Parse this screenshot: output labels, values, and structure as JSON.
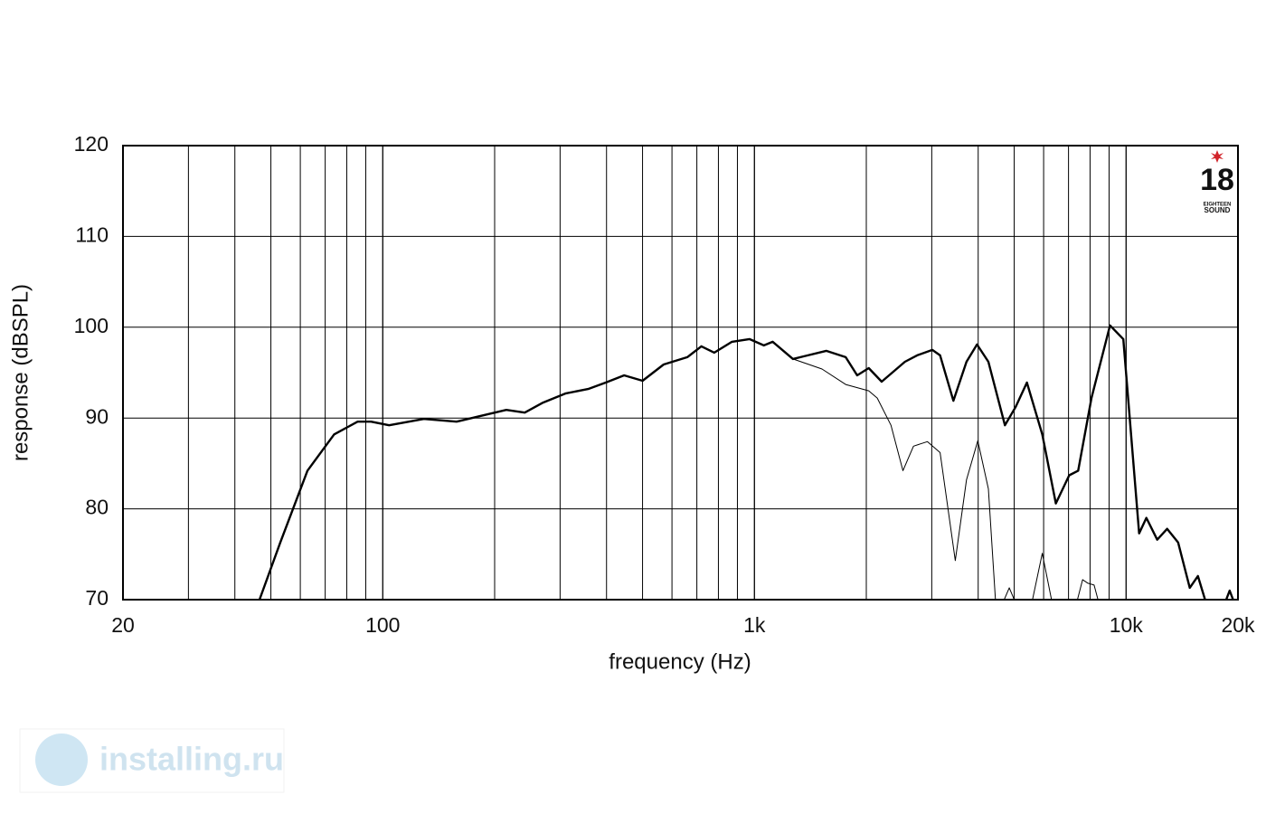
{
  "chart_data": {
    "type": "line",
    "x_label": "frequency (Hz)",
    "y_label": "response (dBSPL)",
    "xscale": "log",
    "grid": true,
    "xlim": [
      20,
      20000
    ],
    "ylim": [
      70,
      120
    ],
    "xticks": [
      20,
      100,
      {
        "value": 1000,
        "label": "1k"
      },
      {
        "value": 10000,
        "label": "10k"
      },
      {
        "value": 20000,
        "label": "20k"
      }
    ],
    "xminor": [
      30,
      40,
      50,
      60,
      70,
      80,
      90,
      200,
      300,
      400,
      500,
      600,
      700,
      800,
      900,
      2000,
      3000,
      4000,
      5000,
      6000,
      7000,
      8000,
      9000
    ],
    "yticks": [
      70,
      80,
      90,
      100,
      110,
      120
    ],
    "series": [
      {
        "color": "#000000",
        "line_width": 2.4,
        "x": [
          46.6,
          53,
          62.7,
          74,
          85.6,
          93,
          104,
          129,
          158,
          182,
          215,
          241,
          270,
          310,
          357,
          398,
          446,
          500,
          570,
          660,
          720,
          780,
          870,
          970,
          1060,
          1120,
          1270,
          1560,
          1760,
          1890,
          2030,
          2200,
          2540,
          2740,
          3010,
          3160,
          3430,
          3720,
          3970,
          4260,
          4720,
          5040,
          5410,
          5950,
          6470,
          7030,
          7430,
          8070,
          9050,
          9830,
          10840,
          11340,
          12130,
          12900,
          13800,
          14840,
          15600,
          16310,
          null,
          18600,
          19000,
          19400
        ],
        "values": [
          70,
          76.3,
          84.2,
          88.2,
          89.6,
          89.6,
          89.2,
          89.9,
          89.6,
          90.2,
          90.9,
          90.6,
          91.7,
          92.7,
          93.2,
          93.9,
          94.7,
          94.1,
          95.9,
          96.7,
          97.9,
          97.2,
          98.4,
          98.7,
          98.0,
          98.4,
          96.5,
          97.4,
          96.7,
          94.7,
          95.5,
          94.0,
          96.2,
          96.9,
          97.5,
          96.9,
          91.9,
          96.2,
          98.1,
          96.2,
          89.2,
          91.2,
          93.9,
          88.2,
          80.6,
          83.7,
          84.2,
          92.2,
          100.2,
          98.7,
          77.3,
          79.0,
          76.6,
          77.8,
          76.3,
          71.3,
          72.6,
          70,
          null,
          70,
          71,
          70
        ]
      },
      {
        "color": "#000000",
        "line_width": 1,
        "x": [
          46.6,
          53,
          62.7,
          74,
          85.6,
          93,
          104,
          129,
          158,
          182,
          215,
          241,
          270,
          310,
          357,
          398,
          446,
          500,
          570,
          660,
          720,
          780,
          870,
          970,
          1060,
          1120,
          1270,
          1520,
          1760,
          2030,
          2140,
          2330,
          2510,
          2680,
          2920,
          3160,
          3470,
          3720,
          3990,
          4260,
          4450,
          null,
          4700,
          4850,
          5000,
          null,
          5600,
          5950,
          6300,
          null,
          7400,
          7640,
          7900,
          8200,
          8400
        ],
        "values": [
          70,
          76.3,
          84.2,
          88.2,
          89.6,
          89.6,
          89.2,
          89.9,
          89.6,
          90.2,
          90.9,
          90.6,
          91.7,
          92.7,
          93.2,
          93.9,
          94.7,
          94.1,
          95.9,
          96.7,
          97.9,
          97.2,
          98.4,
          98.7,
          98.0,
          98.4,
          96.5,
          95.4,
          93.7,
          93.0,
          92.2,
          89.2,
          84.2,
          86.9,
          87.4,
          86.2,
          74.3,
          83.2,
          87.5,
          82.2,
          70,
          null,
          70,
          71.3,
          70,
          null,
          70,
          75.1,
          70,
          null,
          70,
          72.2,
          71.8,
          71.6,
          70
        ]
      }
    ]
  },
  "logo": {
    "number": "18",
    "line1": "EIGHTEEN",
    "line2": "SOUND"
  },
  "watermark": "installing.ru"
}
